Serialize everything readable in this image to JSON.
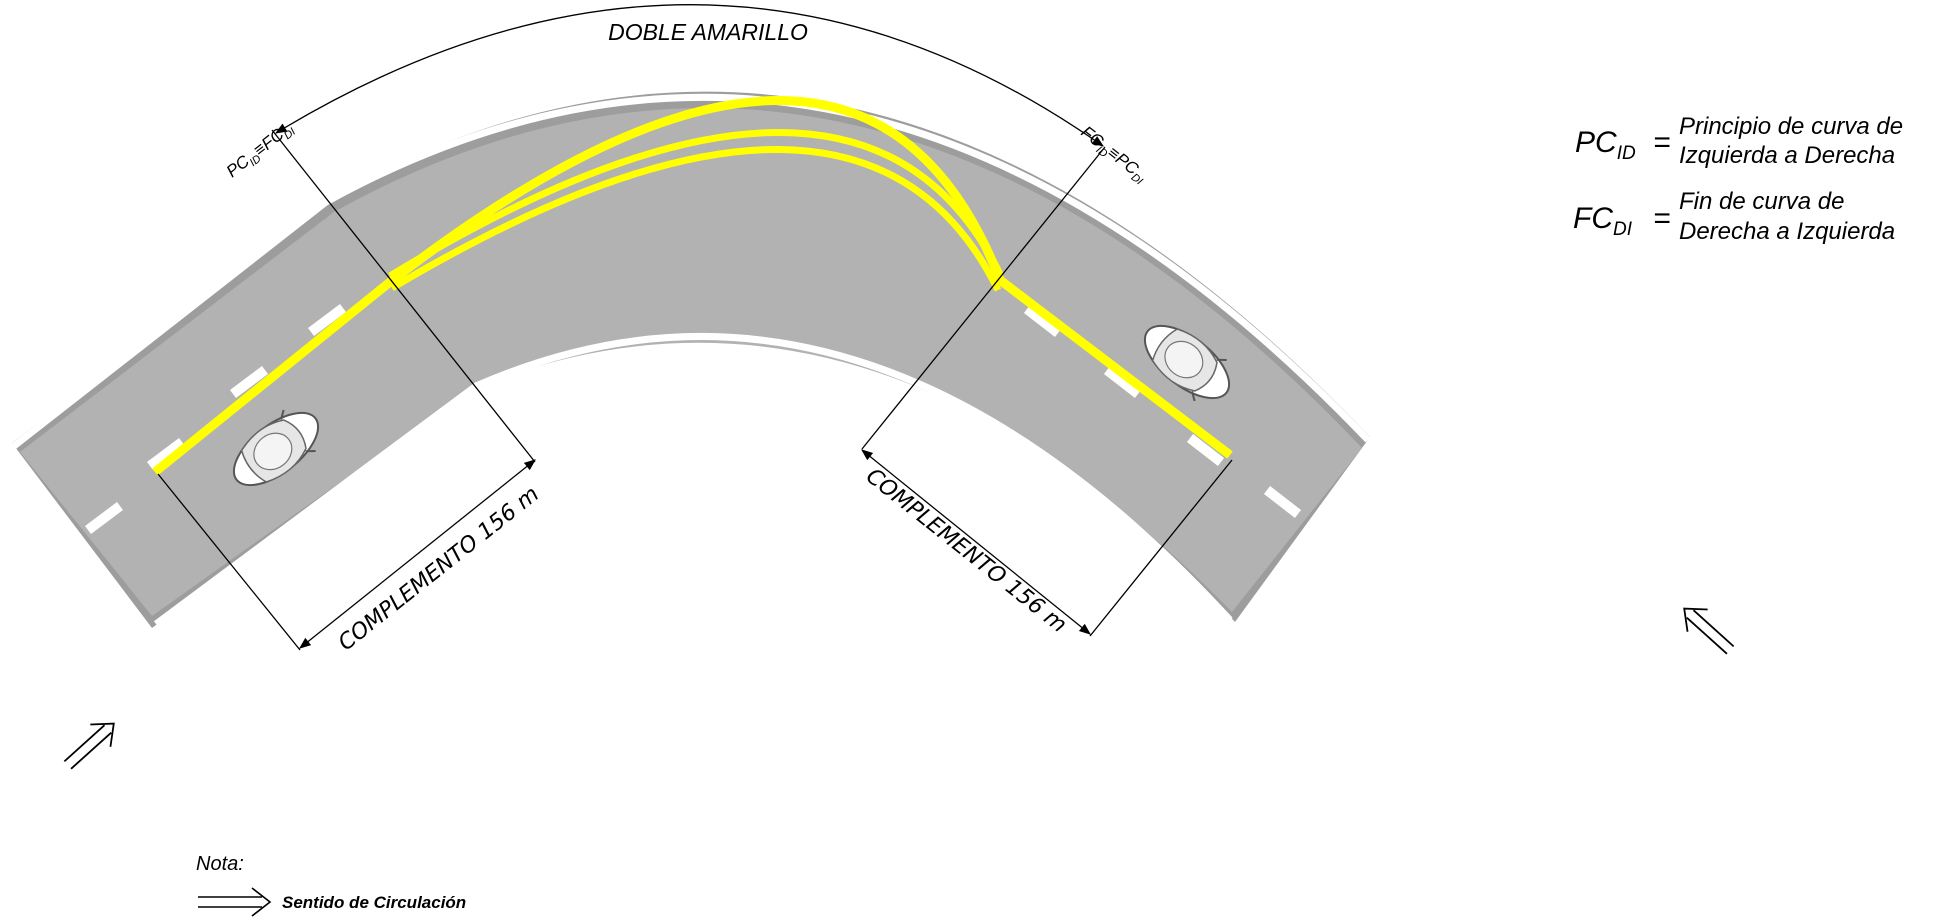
{
  "labels": {
    "doble_amarillo": "DOBLE AMARILLO",
    "complemento_left": "COMPLEMENTO 156 m",
    "complemento_right": "COMPLEMENTO 156 m",
    "pc_left_a": "PC",
    "pc_left_a_sub": "ID",
    "pc_left_b": "FC",
    "pc_left_b_sub": "DI",
    "pc_right_a": "FC",
    "pc_right_a_sub": "ID",
    "pc_right_b": "PC",
    "pc_right_b_sub": "DI",
    "identical_symbol": "≡"
  },
  "legend": {
    "pc_symbol": "PC",
    "pc_sub": "ID",
    "pc_def_line1": "Principio de curva de",
    "pc_def_line2": "Izquierda a Derecha",
    "fc_symbol": "FC",
    "fc_sub": "DI",
    "fc_def_line1": "Fin de curva de",
    "fc_def_line2": "Derecha a Izquierda",
    "equals": "="
  },
  "note": {
    "title": "Nota:",
    "arrow_caption": "Sentido de Circulación"
  },
  "colors": {
    "road": "#b2b2b2",
    "road_edge": "#999999",
    "edge_line": "#ffffff",
    "center_line": "#ffff00",
    "lane_dash": "#ffffff",
    "line_ink": "#000000"
  }
}
